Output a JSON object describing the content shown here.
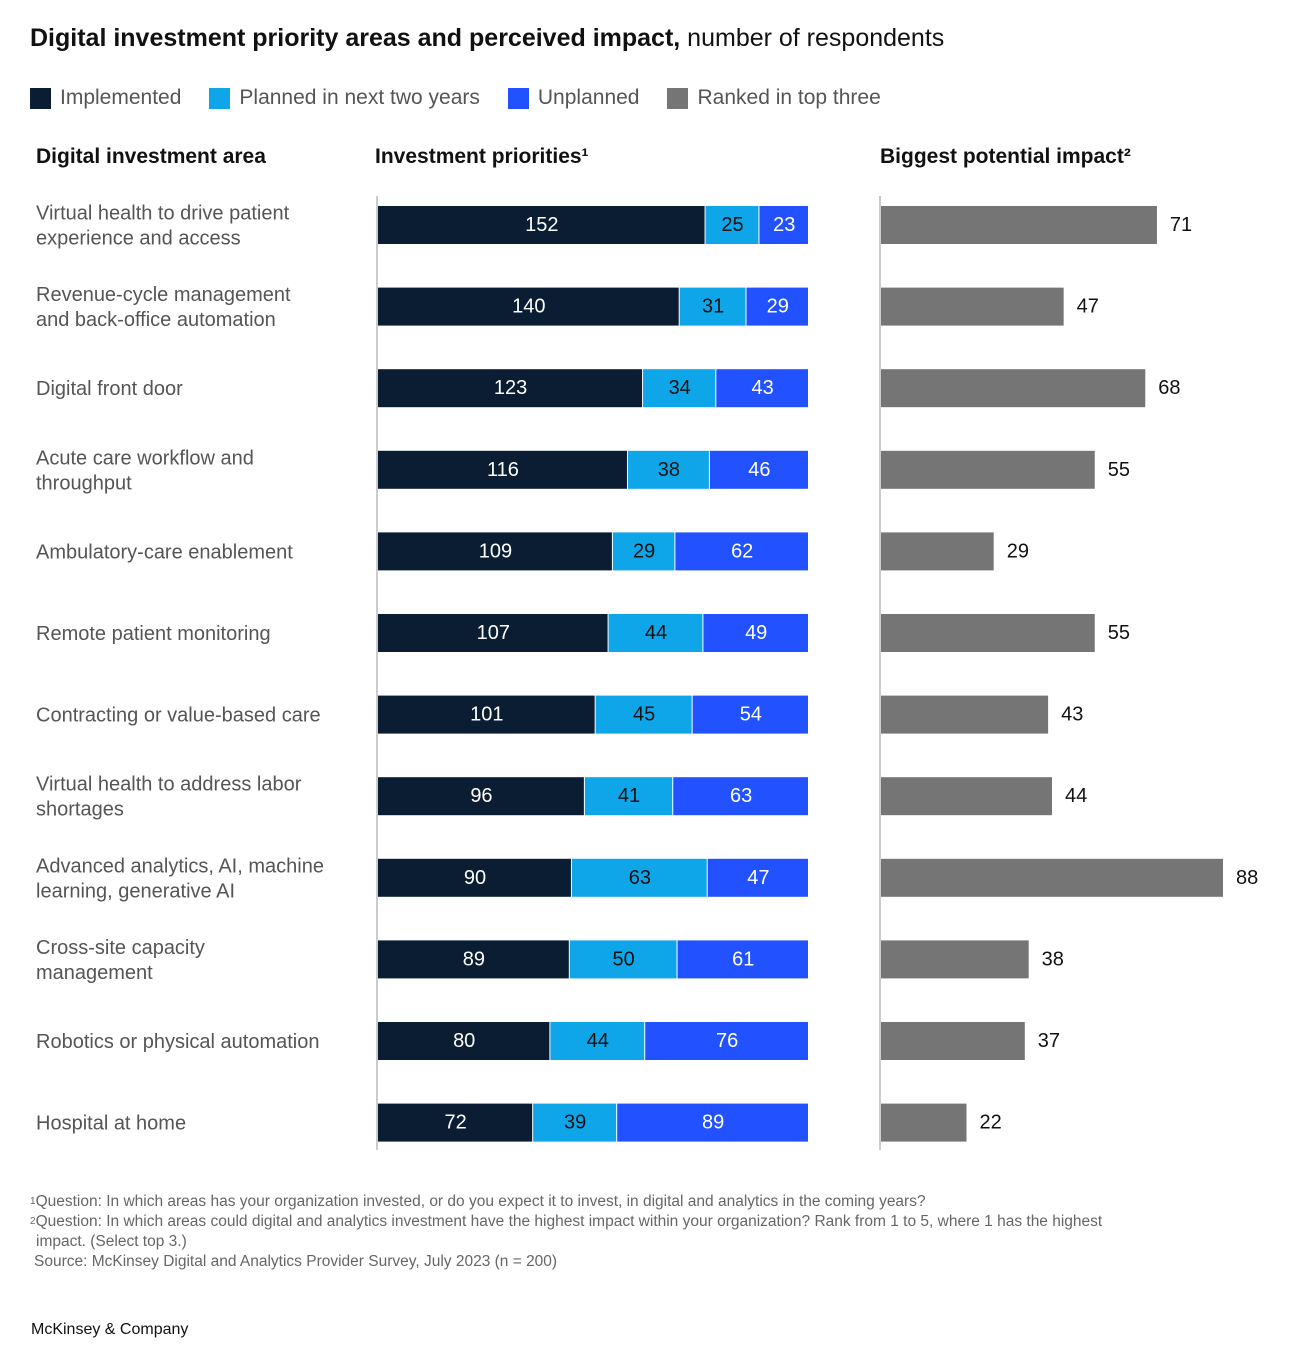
{
  "header": {
    "title_bold": "Digital investment priority areas and perceived impact,",
    "title_regular": " number of respondents"
  },
  "legend": [
    {
      "label": "Implemented",
      "color": "#0b1d33"
    },
    {
      "label": "Planned in next two years",
      "color": "#0ea5e9"
    },
    {
      "label": "Unplanned",
      "color": "#2251ff"
    },
    {
      "label": "Ranked in top three",
      "color": "#757575"
    }
  ],
  "columns": {
    "area": "Digital investment area",
    "priorities": "Investment priorities¹",
    "impact": "Biggest potential impact²"
  },
  "chart_data": {
    "type": "bar",
    "orientation": "horizontal",
    "title": "Digital investment priority areas and perceived impact, number of respondents",
    "categories": [
      [
        "Virtual health to drive patient",
        "experience and access"
      ],
      [
        "Revenue-cycle management",
        "and back-office automation"
      ],
      [
        "Digital front door"
      ],
      [
        "Acute care workflow and",
        "throughput"
      ],
      [
        "Ambulatory-care enablement"
      ],
      [
        "Remote patient monitoring"
      ],
      [
        "Contracting or value-based care"
      ],
      [
        "Virtual health to address labor",
        "shortages"
      ],
      [
        "Advanced analytics, AI, machine",
        "learning, generative AI"
      ],
      [
        "Cross-site capacity",
        "management"
      ],
      [
        "Robotics or physical automation"
      ],
      [
        "Hospital at home"
      ]
    ],
    "stacked_series": [
      {
        "name": "Implemented",
        "color": "#0b1d33",
        "text_color": "#ffffff",
        "values": [
          152,
          140,
          123,
          116,
          109,
          107,
          101,
          96,
          90,
          89,
          80,
          72
        ]
      },
      {
        "name": "Planned in next two years",
        "color": "#0ea5e9",
        "text_color": "#111111",
        "values": [
          25,
          31,
          34,
          38,
          29,
          44,
          45,
          41,
          63,
          50,
          44,
          39
        ]
      },
      {
        "name": "Unplanned",
        "color": "#2251ff",
        "text_color": "#ffffff",
        "values": [
          23,
          29,
          43,
          46,
          62,
          49,
          54,
          63,
          47,
          61,
          76,
          89
        ]
      }
    ],
    "stacked_total": 200,
    "impact_series": {
      "name": "Ranked in top three",
      "color": "#757575",
      "values": [
        71,
        47,
        68,
        55,
        29,
        55,
        43,
        44,
        88,
        38,
        37,
        22
      ]
    },
    "impact_max": 88
  },
  "footnotes": {
    "note1_marker": "1",
    "note1": "Question: In which areas has your organization invested, or do you expect it to invest, in digital and analytics in the coming years?",
    "note2_marker": "2",
    "note2_line1": "Question: In which areas could digital and analytics investment have the highest impact within your organization? Rank from 1 to 5, where 1 has the highest",
    "note2_line2": "impact. (Select top 3.)",
    "source": "Source: McKinsey Digital and Analytics Provider Survey, July 2023 (n = 200)"
  },
  "brand": "McKinsey & Company"
}
